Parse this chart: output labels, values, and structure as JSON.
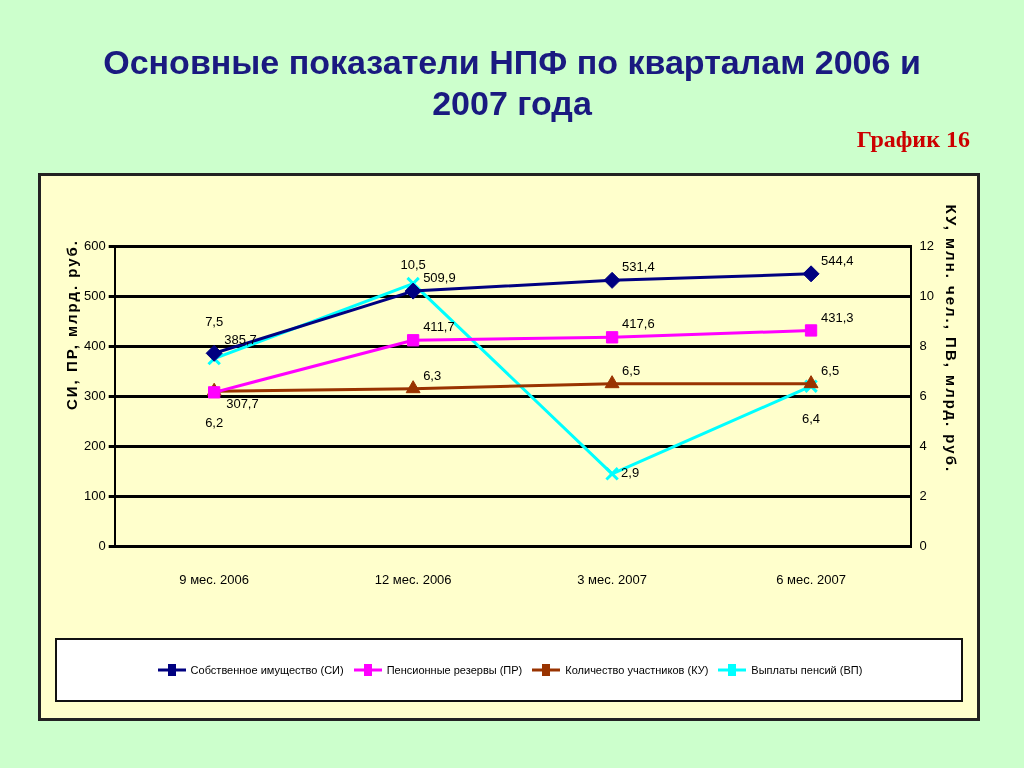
{
  "chart_data": {
    "type": "line",
    "title": "Основные показатели НПФ по кварталам 2006 и 2007 года",
    "subtitle": "График 16",
    "ylabel": "СИ, ПР, млрд. руб.",
    "y2label": "КУ, млн. чел., ПВ, млрд. руб.",
    "categories": [
      "9 мес. 2006",
      "12 мес. 2006",
      "3 мес. 2007",
      "6 мес. 2007"
    ],
    "ylim": [
      0,
      600
    ],
    "yticks": [
      0,
      100,
      200,
      300,
      400,
      500,
      600
    ],
    "y2lim": [
      0,
      12
    ],
    "y2ticks": [
      0,
      2,
      4,
      6,
      8,
      10,
      12
    ],
    "grid": "y",
    "legend": "bottom",
    "series": [
      {
        "name": "Собственное имущество (СИ)",
        "color": "#000080",
        "marker": "diamond",
        "values": [
          385.7,
          509.9,
          531.4,
          544.4
        ],
        "value_labels": [
          "385,7",
          "509,9",
          "531,4",
          "544,4"
        ]
      },
      {
        "name": "Пенсионные резервы (ПР)",
        "color": "#ff00ff",
        "marker": "square",
        "values": [
          307.7,
          411.7,
          417.6,
          431.3
        ],
        "value_labels": [
          "307,7",
          "411,7",
          "417,6",
          "431,3"
        ]
      },
      {
        "name": "Количество участников (КУ)",
        "color": "#993300",
        "marker": "triangle",
        "axis": "y2",
        "values": [
          6.2,
          6.3,
          6.5,
          6.5
        ],
        "value_labels": [
          "6,2",
          "6,3",
          "6,5",
          "6,5"
        ]
      },
      {
        "name": "Выплаты пенсий (ВП)",
        "color": "#00ffff",
        "marker": "cross",
        "axis": "y2",
        "values": [
          7.5,
          10.5,
          2.9,
          6.4
        ],
        "value_labels": [
          "7,5",
          "10,5",
          "2,9",
          "6,4"
        ]
      }
    ]
  }
}
